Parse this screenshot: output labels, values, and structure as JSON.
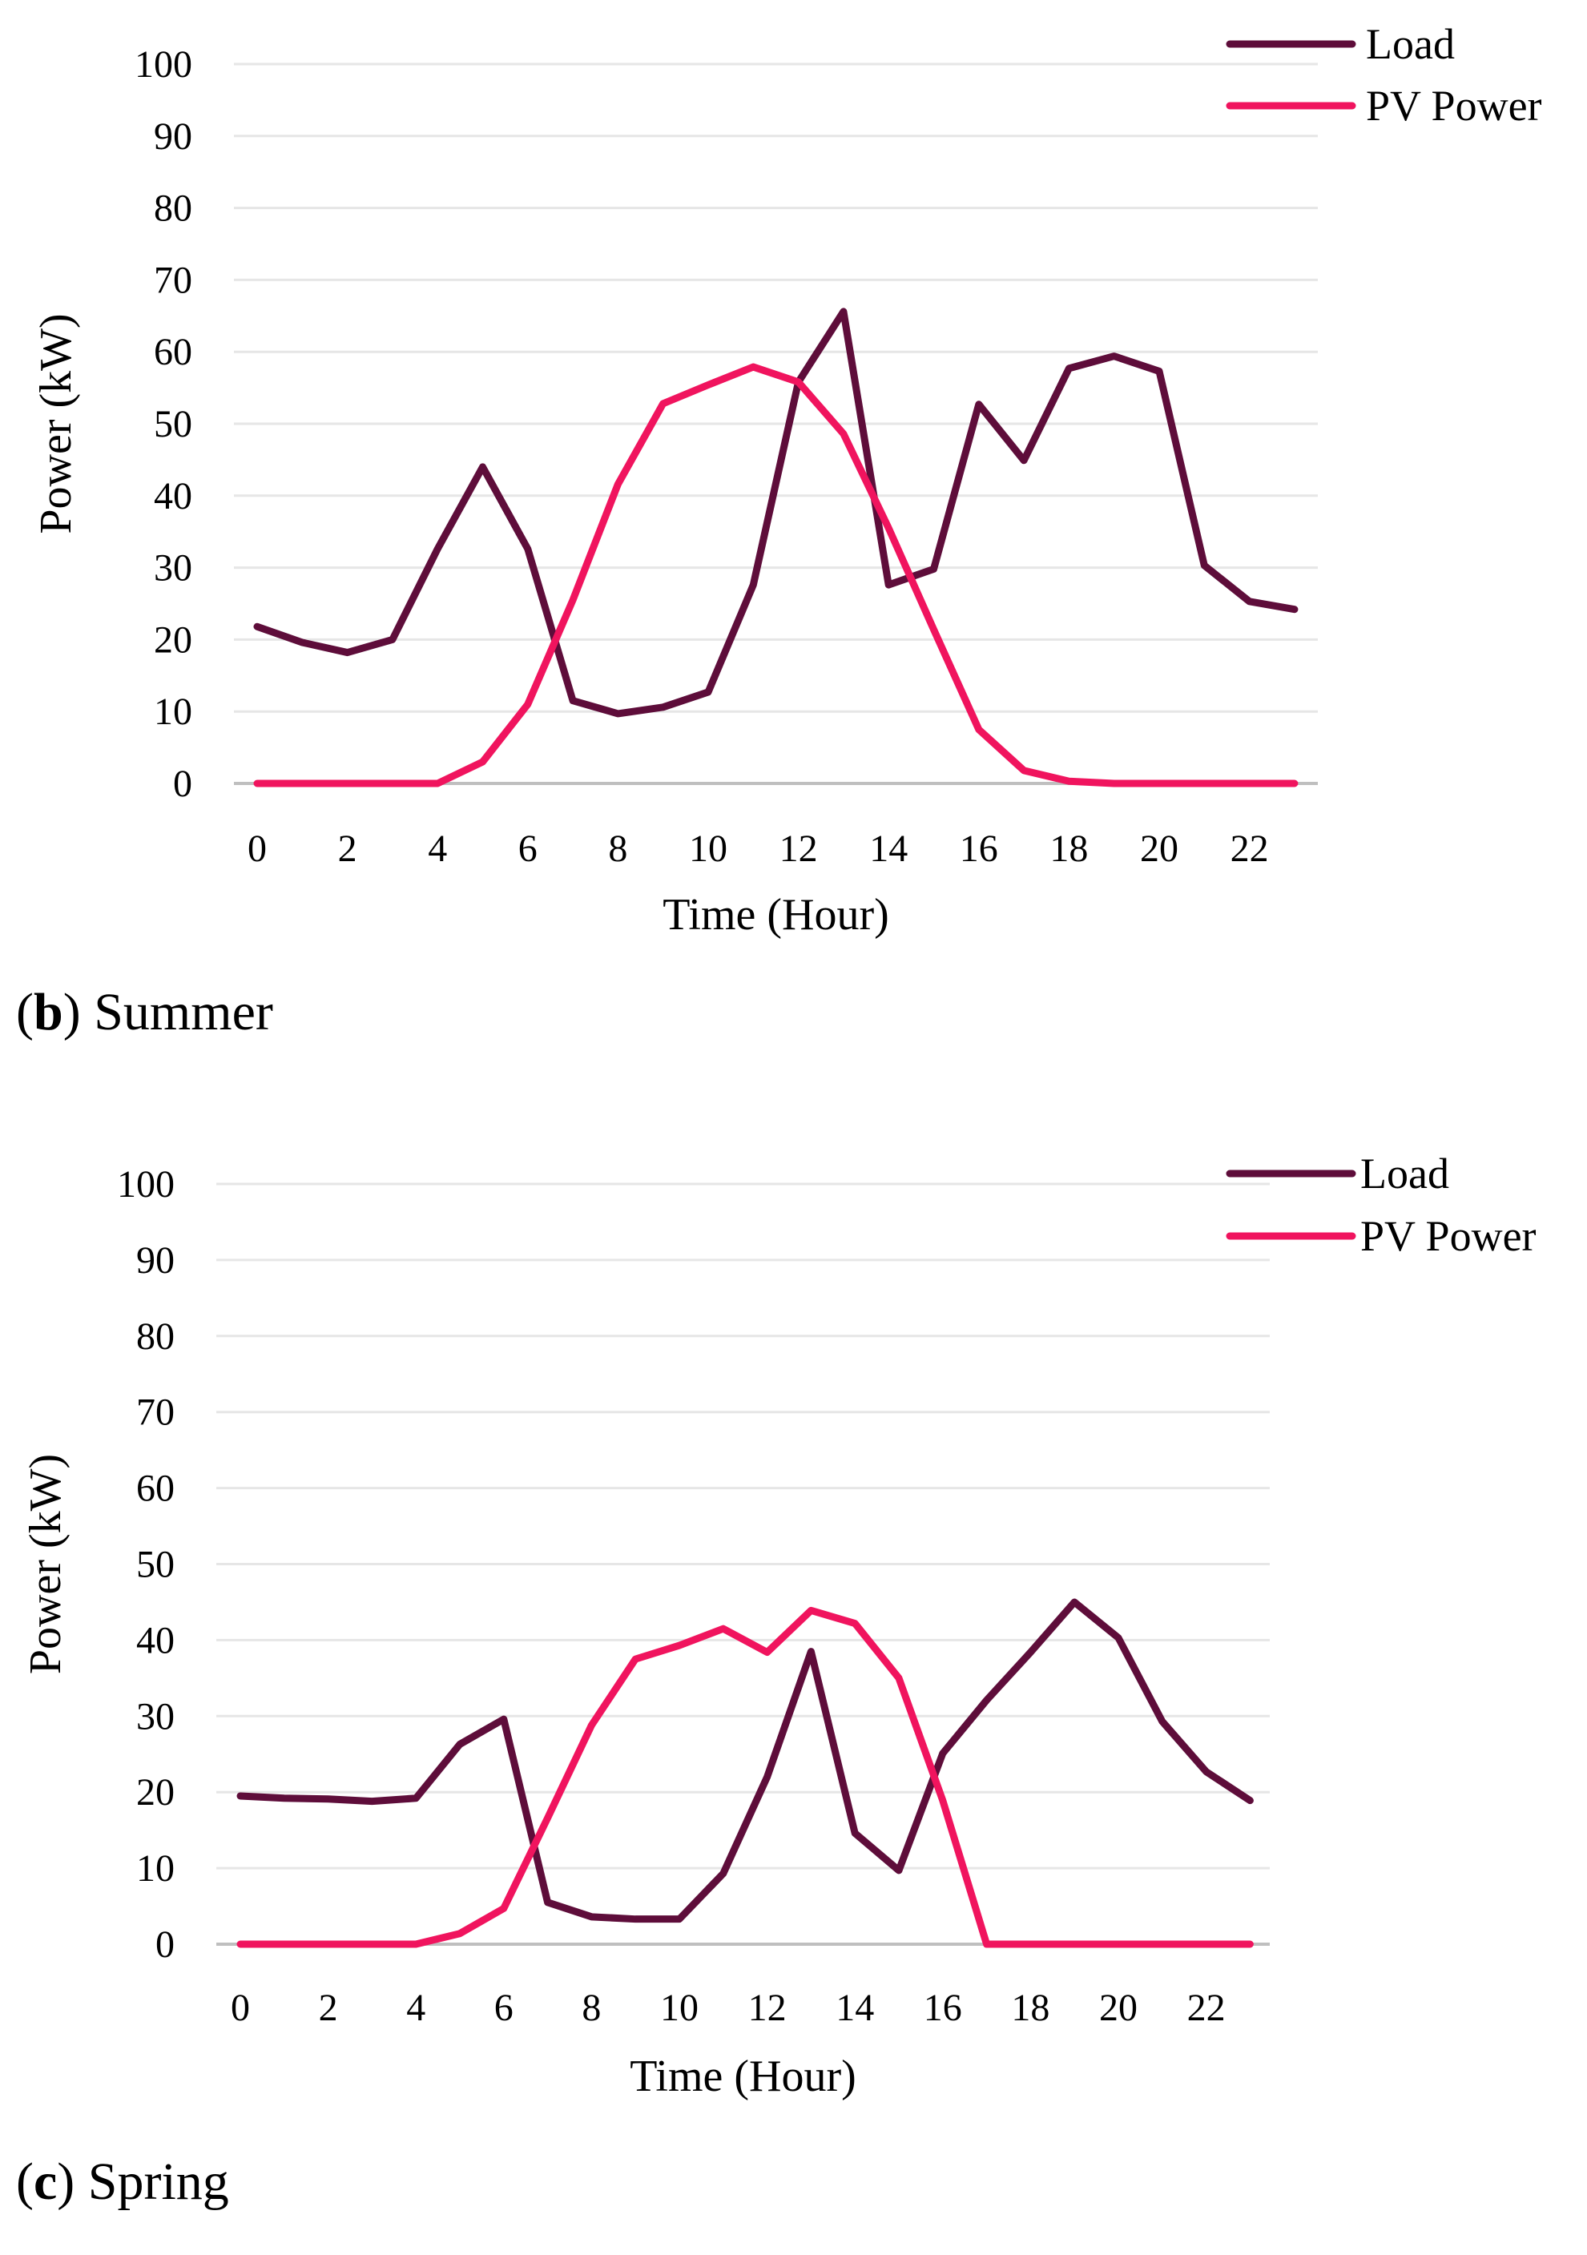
{
  "colors": {
    "load": "#5e0d3a",
    "pv": "#f0145e",
    "grid": "#e6e6e6",
    "axis": "#bfbfbf"
  },
  "chart_data": [
    {
      "type": "line",
      "caption_letter": "b",
      "caption_text": " Summer",
      "xlabel": "Time (Hour)",
      "ylabel": "Power (kW)",
      "ylim": [
        0,
        100
      ],
      "yticks": [
        0,
        10,
        20,
        30,
        40,
        50,
        60,
        70,
        80,
        90,
        100
      ],
      "xticks": [
        0,
        2,
        4,
        6,
        8,
        10,
        12,
        14,
        16,
        18,
        20,
        22
      ],
      "x": [
        0,
        1,
        2,
        3,
        4,
        5,
        6,
        7,
        8,
        9,
        10,
        11,
        12,
        13,
        14,
        15,
        16,
        17,
        18,
        19,
        20,
        21,
        22,
        23
      ],
      "grid": true,
      "legend_position": "top-right",
      "series": [
        {
          "name": "Load",
          "color_key": "load",
          "values": [
            21.8,
            19.6,
            18.2,
            20.0,
            32.6,
            44.0,
            32.6,
            11.5,
            9.7,
            10.6,
            12.7,
            27.6,
            55.8,
            65.6,
            27.6,
            29.8,
            52.7,
            44.9,
            57.7,
            59.4,
            57.3,
            30.3,
            25.3,
            24.2
          ]
        },
        {
          "name": "PV Power",
          "color_key": "pv",
          "values": [
            0,
            0,
            0,
            0,
            0,
            3.0,
            11.0,
            25.5,
            41.6,
            52.8,
            55.4,
            57.9,
            55.8,
            48.6,
            35.5,
            21.4,
            7.5,
            1.8,
            0.3,
            0,
            0,
            0,
            0,
            0
          ]
        }
      ]
    },
    {
      "type": "line",
      "caption_letter": "c",
      "caption_text": " Spring",
      "xlabel": "Time (Hour)",
      "ylabel": "Power (kW)",
      "ylim": [
        0,
        100
      ],
      "yticks": [
        0,
        10,
        20,
        30,
        40,
        50,
        60,
        70,
        80,
        90,
        100
      ],
      "xticks": [
        0,
        2,
        4,
        6,
        8,
        10,
        12,
        14,
        16,
        18,
        20,
        22
      ],
      "x": [
        0,
        1,
        2,
        3,
        4,
        5,
        6,
        7,
        8,
        9,
        10,
        11,
        12,
        13,
        14,
        15,
        16,
        17,
        18,
        19,
        20,
        21,
        22,
        23
      ],
      "grid": true,
      "legend_position": "top-right",
      "series": [
        {
          "name": "Load",
          "color_key": "load",
          "values": [
            19.5,
            19.2,
            19.1,
            18.8,
            19.2,
            26.3,
            29.6,
            5.5,
            3.6,
            3.3,
            3.3,
            9.3,
            22.0,
            38.5,
            14.6,
            9.7,
            25.1,
            32.1,
            38.4,
            45.0,
            40.3,
            29.3,
            22.7,
            18.9
          ]
        },
        {
          "name": "PV Power",
          "color_key": "pv",
          "values": [
            0,
            0,
            0,
            0,
            0,
            1.4,
            4.7,
            16.6,
            28.8,
            37.5,
            39.3,
            41.5,
            38.4,
            43.9,
            42.2,
            35.0,
            18.9,
            0,
            0,
            0,
            0,
            0,
            0,
            0
          ]
        }
      ]
    }
  ]
}
